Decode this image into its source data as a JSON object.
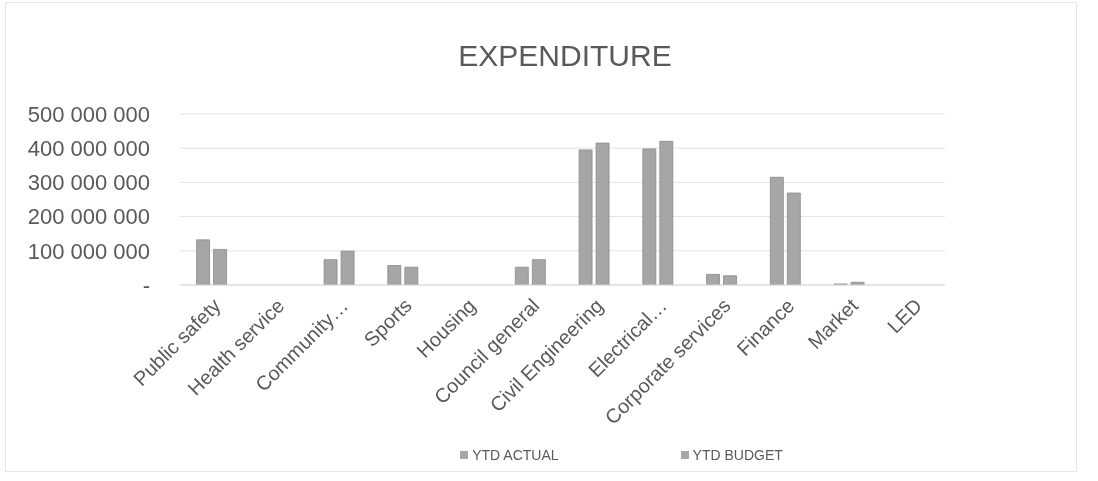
{
  "chart_data": {
    "type": "bar",
    "title": "EXPENDITURE",
    "categories": [
      "Public safety",
      "Health service",
      "Community…",
      "Sports",
      "Housing",
      "Council general",
      "Civil Engineering",
      "Electrical…",
      "Corporate services",
      "Finance",
      "Market",
      "LED"
    ],
    "series": [
      {
        "name": "YTD ACTUAL",
        "color": "#a6a6a6",
        "values": [
          132000000,
          0,
          74000000,
          57000000,
          0,
          52000000,
          395000000,
          398000000,
          31000000,
          315000000,
          3000000,
          0
        ]
      },
      {
        "name": "YTD BUDGET",
        "color": "#a6a6a6",
        "values": [
          104000000,
          0,
          99000000,
          52000000,
          0,
          74000000,
          415000000,
          420000000,
          27000000,
          269000000,
          8000000,
          0
        ]
      }
    ],
    "ylim": [
      0,
      500000000
    ],
    "yticks": [
      {
        "value": 0,
        "label": "-"
      },
      {
        "value": 100000000,
        "label": "100 000 000"
      },
      {
        "value": 200000000,
        "label": "200 000 000"
      },
      {
        "value": 300000000,
        "label": "300 000 000"
      },
      {
        "value": 400000000,
        "label": "400 000 000"
      },
      {
        "value": 500000000,
        "label": "500 000 000"
      }
    ],
    "grid": "y",
    "legend": "bottom"
  }
}
